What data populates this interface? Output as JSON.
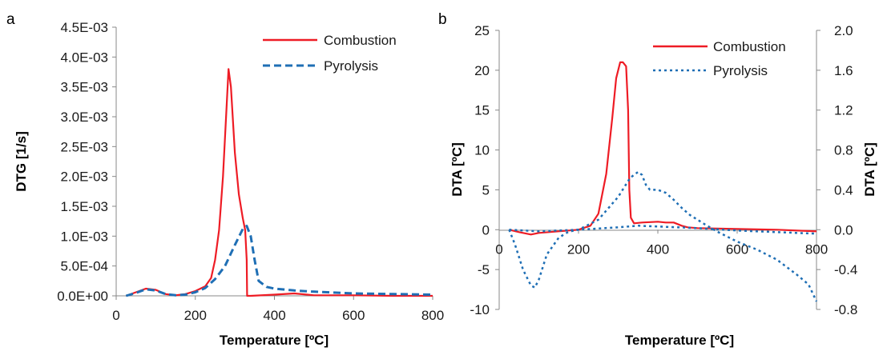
{
  "chart_data": [
    {
      "panel_label": "a",
      "type": "line",
      "title": "",
      "xlabel": "Temperature [ºC]",
      "ylabel": "DTG [1/s]",
      "xlim": [
        0,
        800
      ],
      "ylim": [
        0,
        0.0045
      ],
      "x_ticks": [
        "0",
        "200",
        "400",
        "600",
        "800"
      ],
      "y_ticks": [
        "0.0E+00",
        "5.0E-04",
        "1.0E-03",
        "1.5E-03",
        "2.0E-03",
        "2.5E-03",
        "3.0E-03",
        "3.5E-03",
        "4.0E-03",
        "4.5E-03"
      ],
      "grid": false,
      "legend_position": "top-right",
      "colors": {
        "combustion": "#ee1c25",
        "pyrolysis": "#1f6fb5"
      },
      "series": [
        {
          "name": "Combustion",
          "line": "solid",
          "x": [
            25,
            50,
            75,
            100,
            125,
            150,
            175,
            200,
            225,
            240,
            250,
            260,
            270,
            280,
            284,
            290,
            300,
            310,
            320,
            326,
            330,
            331,
            340,
            400,
            450,
            500,
            600,
            700,
            800
          ],
          "y": [
            0.0,
            6e-05,
            0.00012,
            0.0001,
            3e-05,
            1e-05,
            3e-05,
            8e-05,
            0.00016,
            0.0003,
            0.0006,
            0.0011,
            0.002,
            0.0033,
            0.0038,
            0.0035,
            0.0024,
            0.0017,
            0.0013,
            0.0011,
            0.0006,
            0.0,
            0.0,
            2e-05,
            4e-05,
            1e-05,
            1e-05,
            0.0,
            0.0
          ]
        },
        {
          "name": "Pyrolysis",
          "line": "dashed",
          "x": [
            25,
            50,
            75,
            100,
            125,
            150,
            175,
            200,
            225,
            250,
            275,
            300,
            320,
            330,
            340,
            350,
            360,
            380,
            400,
            450,
            500,
            600,
            700,
            800
          ],
          "y": [
            0.0,
            5e-05,
            0.00011,
            9e-05,
            3e-05,
            1e-05,
            2e-05,
            6e-05,
            0.00013,
            0.00028,
            0.0005,
            0.00085,
            0.00112,
            0.00117,
            0.001,
            0.0006,
            0.00025,
            0.00015,
            0.00012,
            9e-05,
            7e-05,
            4e-05,
            3e-05,
            2e-05
          ]
        }
      ]
    },
    {
      "panel_label": "b",
      "type": "line",
      "title": "",
      "xlabel": "Temperature [ºC]",
      "ylabel": "DTA [ºC]",
      "y2label": "DTA [ºC]",
      "xlim": [
        0,
        800
      ],
      "ylim": [
        -10,
        25
      ],
      "y2lim": [
        -0.8,
        2.0
      ],
      "x_ticks": [
        "0",
        "200",
        "400",
        "600",
        "800"
      ],
      "y_ticks": [
        "-10",
        "-5",
        "0",
        "5",
        "10",
        "15",
        "20",
        "25"
      ],
      "y2_ticks": [
        "-0.8",
        "-0.4",
        "0.0",
        "0.4",
        "0.8",
        "1.2",
        "1.6",
        "2.0"
      ],
      "grid": false,
      "legend_position": "top-right",
      "colors": {
        "combustion": "#ee1c25",
        "pyrolysis": "#1f6fb5"
      },
      "series": [
        {
          "name": "Combustion",
          "line": "solid",
          "axis": "left",
          "x": [
            25,
            50,
            80,
            100,
            150,
            200,
            230,
            250,
            270,
            285,
            295,
            305,
            312,
            320,
            325,
            328,
            332,
            340,
            360,
            400,
            420,
            440,
            460,
            475,
            500,
            600,
            700,
            800
          ],
          "y": [
            0.0,
            -0.3,
            -0.6,
            -0.4,
            -0.2,
            0.0,
            0.5,
            2.0,
            7.0,
            14.0,
            19.0,
            21.0,
            21.0,
            20.5,
            15.0,
            5.0,
            1.5,
            0.8,
            0.9,
            1.0,
            0.9,
            0.9,
            0.5,
            0.3,
            0.2,
            0.1,
            0.0,
            -0.2
          ]
        },
        {
          "name": "Pyrolysis",
          "line": "dotted",
          "axis": "right",
          "x": [
            25,
            40,
            60,
            80,
            90,
            100,
            120,
            150,
            175,
            200,
            250,
            300,
            330,
            350,
            360,
            370,
            380,
            400,
            420,
            440,
            460,
            480,
            500,
            520,
            550,
            600,
            650,
            700,
            750,
            780,
            800
          ],
          "y": [
            0.0,
            -0.15,
            -0.4,
            -0.56,
            -0.58,
            -0.5,
            -0.25,
            -0.08,
            -0.02,
            0.0,
            0.1,
            0.33,
            0.52,
            0.58,
            0.55,
            0.45,
            0.4,
            0.4,
            0.37,
            0.3,
            0.22,
            0.15,
            0.1,
            0.05,
            -0.02,
            -0.12,
            -0.2,
            -0.3,
            -0.45,
            -0.55,
            -0.72
          ]
        },
        {
          "name": "",
          "line": "dotted",
          "axis": "left",
          "style_ref": "pyrolysis",
          "x": [
            25,
            100,
            200,
            300,
            350,
            400,
            500,
            600,
            700,
            800
          ],
          "y": [
            0.0,
            -0.2,
            0.0,
            0.3,
            0.5,
            0.4,
            0.2,
            -0.1,
            -0.3,
            -0.5
          ]
        }
      ]
    }
  ]
}
